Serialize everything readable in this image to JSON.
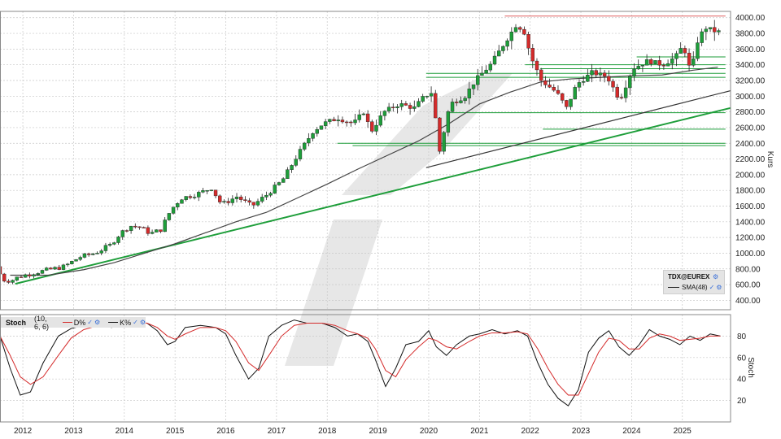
{
  "colors": {
    "up": "#1e9e3a",
    "down": "#d42b2b",
    "sma": "#444444",
    "trend_green": "#1e9e3a",
    "trend_black": "#333333",
    "resistance_red": "#e06060",
    "stoch_k": "#111111",
    "stoch_d": "#d42b2b",
    "grid": "#c8c8c8"
  },
  "legend": {
    "symbol": "TDX@EUREX",
    "sma_label": "SMA(48)"
  },
  "stoch_header": {
    "name": "Stoch",
    "params": "(10, 6, 6)",
    "d_label": "D%",
    "k_label": "K%"
  },
  "chart_data": [
    {
      "type": "candlestick",
      "ylabel": "Kurs",
      "ylim": [
        280,
        4080
      ],
      "yticks": [
        400,
        600,
        800,
        1000,
        1200,
        1400,
        1600,
        1800,
        2000,
        2200,
        2400,
        2600,
        2800,
        3000,
        3200,
        3400,
        3600,
        3800,
        4000
      ],
      "ytick_labels": [
        "400.00",
        "600.00",
        "800.00",
        "1000.00",
        "1200.00",
        "1400.00",
        "1600.00",
        "1800.00",
        "2000.00",
        "2200.00",
        "2400.00",
        "2600.00",
        "2800.00",
        "3000.00",
        "3200.00",
        "3400.00",
        "3600.00",
        "3800.00",
        "4000.00"
      ],
      "xlim": [
        2011.55,
        2025.95
      ],
      "xticks": [
        2012,
        2013,
        2014,
        2015,
        2016,
        2017,
        2018,
        2019,
        2020,
        2021,
        2022,
        2023,
        2024,
        2025
      ],
      "xtick_labels": [
        "2012",
        "2013",
        "2014",
        "2015",
        "2016",
        "2017",
        "2018",
        "2019",
        "2020",
        "2021",
        "2022",
        "2023",
        "2024",
        "2025"
      ],
      "grid": true,
      "legend": "bottom-right",
      "price_path": [
        [
          2011.55,
          830
        ],
        [
          2011.7,
          660
        ],
        [
          2011.85,
          650
        ],
        [
          2012.0,
          700
        ],
        [
          2012.3,
          750
        ],
        [
          2012.6,
          790
        ],
        [
          2012.9,
          830
        ],
        [
          2013.2,
          950
        ],
        [
          2013.5,
          1000
        ],
        [
          2013.8,
          1100
        ],
        [
          2014.0,
          1250
        ],
        [
          2014.2,
          1350
        ],
        [
          2014.4,
          1330
        ],
        [
          2014.6,
          1250
        ],
        [
          2014.8,
          1300
        ],
        [
          2015.0,
          1550
        ],
        [
          2015.2,
          1700
        ],
        [
          2015.5,
          1750
        ],
        [
          2015.8,
          1830
        ],
        [
          2016.0,
          1620
        ],
        [
          2016.3,
          1720
        ],
        [
          2016.6,
          1600
        ],
        [
          2016.9,
          1750
        ],
        [
          2017.2,
          1930
        ],
        [
          2017.5,
          2250
        ],
        [
          2017.8,
          2550
        ],
        [
          2018.0,
          2650
        ],
        [
          2018.3,
          2720
        ],
        [
          2018.6,
          2650
        ],
        [
          2018.8,
          2800
        ],
        [
          2018.95,
          2550
        ],
        [
          2019.2,
          2800
        ],
        [
          2019.5,
          2900
        ],
        [
          2019.8,
          2850
        ],
        [
          2020.0,
          3000
        ],
        [
          2020.15,
          3050
        ],
        [
          2020.3,
          2300
        ],
        [
          2020.5,
          2900
        ],
        [
          2020.8,
          3000
        ],
        [
          2021.0,
          3200
        ],
        [
          2021.3,
          3400
        ],
        [
          2021.6,
          3700
        ],
        [
          2021.8,
          3900
        ],
        [
          2021.95,
          3850
        ],
        [
          2022.1,
          3500
        ],
        [
          2022.3,
          3200
        ],
        [
          2022.6,
          3050
        ],
        [
          2022.8,
          2850
        ],
        [
          2023.0,
          3150
        ],
        [
          2023.3,
          3300
        ],
        [
          2023.6,
          3250
        ],
        [
          2023.85,
          2950
        ],
        [
          2024.1,
          3350
        ],
        [
          2024.4,
          3450
        ],
        [
          2024.7,
          3400
        ],
        [
          2024.95,
          3500
        ],
        [
          2025.1,
          3650
        ],
        [
          2025.25,
          3300
        ],
        [
          2025.4,
          3750
        ],
        [
          2025.55,
          3870
        ],
        [
          2025.75,
          3820
        ]
      ],
      "sma48_path": [
        [
          2011.75,
          720
        ],
        [
          2012.5,
          720
        ],
        [
          2013.2,
          790
        ],
        [
          2013.8,
          880
        ],
        [
          2014.4,
          1000
        ],
        [
          2015.0,
          1120
        ],
        [
          2015.6,
          1260
        ],
        [
          2016.2,
          1400
        ],
        [
          2016.8,
          1520
        ],
        [
          2017.4,
          1700
        ],
        [
          2018.0,
          1880
        ],
        [
          2018.6,
          2070
        ],
        [
          2019.2,
          2250
        ],
        [
          2019.8,
          2430
        ],
        [
          2020.4,
          2650
        ],
        [
          2021.0,
          2900
        ],
        [
          2021.6,
          3050
        ],
        [
          2022.2,
          3180
        ],
        [
          2022.8,
          3220
        ],
        [
          2023.4,
          3240
        ],
        [
          2024.0,
          3260
        ],
        [
          2024.6,
          3270
        ],
        [
          2025.2,
          3330
        ],
        [
          2025.7,
          3370
        ]
      ],
      "stochastic": {
        "ylabel": "Stoch",
        "ylim": [
          0,
          100
        ],
        "yticks": [
          20,
          40,
          60,
          80
        ],
        "ytick_labels": [
          "20",
          "40",
          "60",
          "80"
        ],
        "k_path": [
          [
            2011.55,
            80
          ],
          [
            2011.75,
            50
          ],
          [
            2011.95,
            25
          ],
          [
            2012.15,
            28
          ],
          [
            2012.4,
            55
          ],
          [
            2012.7,
            80
          ],
          [
            2012.95,
            87
          ],
          [
            2013.2,
            90
          ],
          [
            2013.5,
            92
          ],
          [
            2013.75,
            88
          ],
          [
            2013.95,
            92
          ],
          [
            2014.2,
            94
          ],
          [
            2014.45,
            92
          ],
          [
            2014.65,
            85
          ],
          [
            2014.85,
            72
          ],
          [
            2015.0,
            75
          ],
          [
            2015.2,
            88
          ],
          [
            2015.5,
            90
          ],
          [
            2015.8,
            88
          ],
          [
            2016.0,
            82
          ],
          [
            2016.2,
            62
          ],
          [
            2016.45,
            40
          ],
          [
            2016.65,
            50
          ],
          [
            2016.85,
            80
          ],
          [
            2017.1,
            90
          ],
          [
            2017.35,
            95
          ],
          [
            2017.6,
            92
          ],
          [
            2017.9,
            92
          ],
          [
            2018.15,
            88
          ],
          [
            2018.4,
            80
          ],
          [
            2018.6,
            82
          ],
          [
            2018.8,
            75
          ],
          [
            2018.95,
            58
          ],
          [
            2019.15,
            33
          ],
          [
            2019.35,
            50
          ],
          [
            2019.55,
            72
          ],
          [
            2019.8,
            75
          ],
          [
            2020.0,
            85
          ],
          [
            2020.15,
            70
          ],
          [
            2020.35,
            62
          ],
          [
            2020.55,
            72
          ],
          [
            2020.8,
            80
          ],
          [
            2021.0,
            82
          ],
          [
            2021.25,
            86
          ],
          [
            2021.5,
            82
          ],
          [
            2021.75,
            85
          ],
          [
            2021.95,
            80
          ],
          [
            2022.15,
            55
          ],
          [
            2022.35,
            35
          ],
          [
            2022.55,
            22
          ],
          [
            2022.75,
            15
          ],
          [
            2022.95,
            30
          ],
          [
            2023.15,
            65
          ],
          [
            2023.35,
            78
          ],
          [
            2023.55,
            85
          ],
          [
            2023.75,
            70
          ],
          [
            2023.95,
            62
          ],
          [
            2024.15,
            72
          ],
          [
            2024.35,
            86
          ],
          [
            2024.55,
            80
          ],
          [
            2024.75,
            77
          ],
          [
            2024.95,
            72
          ],
          [
            2025.15,
            80
          ],
          [
            2025.35,
            76
          ],
          [
            2025.55,
            82
          ],
          [
            2025.75,
            80
          ]
        ],
        "d_path": [
          [
            2011.55,
            80
          ],
          [
            2011.75,
            62
          ],
          [
            2011.95,
            42
          ],
          [
            2012.15,
            35
          ],
          [
            2012.4,
            42
          ],
          [
            2012.7,
            62
          ],
          [
            2012.95,
            78
          ],
          [
            2013.2,
            86
          ],
          [
            2013.5,
            90
          ],
          [
            2013.75,
            89
          ],
          [
            2013.95,
            90
          ],
          [
            2014.2,
            92
          ],
          [
            2014.45,
            92
          ],
          [
            2014.65,
            88
          ],
          [
            2014.85,
            80
          ],
          [
            2015.0,
            77
          ],
          [
            2015.2,
            82
          ],
          [
            2015.5,
            88
          ],
          [
            2015.8,
            88
          ],
          [
            2016.0,
            85
          ],
          [
            2016.2,
            75
          ],
          [
            2016.45,
            55
          ],
          [
            2016.65,
            48
          ],
          [
            2016.85,
            62
          ],
          [
            2017.1,
            80
          ],
          [
            2017.35,
            90
          ],
          [
            2017.6,
            92
          ],
          [
            2017.9,
            92
          ],
          [
            2018.15,
            90
          ],
          [
            2018.4,
            85
          ],
          [
            2018.6,
            82
          ],
          [
            2018.8,
            78
          ],
          [
            2018.95,
            68
          ],
          [
            2019.15,
            48
          ],
          [
            2019.35,
            42
          ],
          [
            2019.55,
            58
          ],
          [
            2019.8,
            70
          ],
          [
            2020.0,
            78
          ],
          [
            2020.15,
            76
          ],
          [
            2020.35,
            70
          ],
          [
            2020.55,
            68
          ],
          [
            2020.8,
            75
          ],
          [
            2021.0,
            80
          ],
          [
            2021.25,
            83
          ],
          [
            2021.5,
            83
          ],
          [
            2021.75,
            84
          ],
          [
            2021.95,
            82
          ],
          [
            2022.15,
            68
          ],
          [
            2022.35,
            50
          ],
          [
            2022.55,
            35
          ],
          [
            2022.75,
            25
          ],
          [
            2022.95,
            25
          ],
          [
            2023.15,
            45
          ],
          [
            2023.35,
            65
          ],
          [
            2023.55,
            78
          ],
          [
            2023.75,
            76
          ],
          [
            2023.95,
            68
          ],
          [
            2024.15,
            68
          ],
          [
            2024.35,
            78
          ],
          [
            2024.55,
            82
          ],
          [
            2024.75,
            80
          ],
          [
            2024.95,
            76
          ],
          [
            2025.15,
            77
          ],
          [
            2025.35,
            78
          ],
          [
            2025.55,
            80
          ],
          [
            2025.75,
            80
          ]
        ]
      },
      "annotations": {
        "resistance_line": {
          "value": 4020,
          "x_from": 2021.5,
          "x_to": 2025.85
        },
        "support_lines": [
          {
            "value": 3290,
            "x_from": 2019.95,
            "x_to": 2025.85
          },
          {
            "value": 3240,
            "x_from": 2019.95,
            "x_to": 2025.85
          },
          {
            "value": 3400,
            "x_from": 2021.9,
            "x_to": 2025.85
          },
          {
            "value": 3500,
            "x_from": 2024.1,
            "x_to": 2025.85
          },
          {
            "value": 3350,
            "x_from": 2022.2,
            "x_to": 2025.85
          },
          {
            "value": 2790,
            "x_from": 2020.4,
            "x_to": 2025.85
          },
          {
            "value": 2580,
            "x_from": 2022.25,
            "x_to": 2025.85
          },
          {
            "value": 2400,
            "x_from": 2018.2,
            "x_to": 2025.85
          },
          {
            "value": 2370,
            "x_from": 2018.5,
            "x_to": 2025.85
          }
        ],
        "trendlines": [
          {
            "color": "green",
            "from": [
              2011.85,
              610
            ],
            "to": [
              2025.95,
              2850
            ]
          },
          {
            "color": "black",
            "from": [
              2019.95,
              2090
            ],
            "to": [
              2025.95,
              3070
            ]
          }
        ]
      }
    }
  ]
}
